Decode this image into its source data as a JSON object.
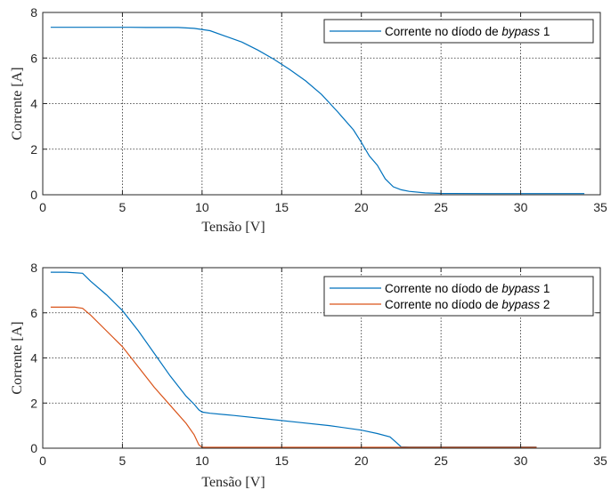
{
  "chart_data": [
    {
      "type": "line",
      "title": "",
      "xlabel": "Tensão [V]",
      "ylabel": "Corrente [A]",
      "xlim": [
        0,
        35
      ],
      "ylim": [
        0,
        8
      ],
      "xticks": [
        0,
        5,
        10,
        15,
        20,
        25,
        30,
        35
      ],
      "yticks": [
        0,
        2,
        4,
        6,
        8
      ],
      "grid": true,
      "legend_position": "top-right",
      "series": [
        {
          "name": "Corrente no díodo de bypass 1",
          "legend_prefix": "Corrente no díodo de ",
          "legend_italic": "bypass",
          "legend_suffix": " 1",
          "color": "#0072BD",
          "x": [
            0.5,
            2,
            4,
            5.5,
            6.5,
            7.5,
            8.5,
            9.5,
            10.5,
            11.5,
            12.5,
            13.5,
            14.5,
            15.5,
            16.5,
            17.5,
            18.5,
            19.5,
            20,
            20.5,
            21,
            21.5,
            22,
            22.5,
            23,
            24,
            25,
            28,
            30,
            34
          ],
          "y": [
            7.35,
            7.35,
            7.35,
            7.35,
            7.34,
            7.34,
            7.34,
            7.3,
            7.2,
            6.95,
            6.7,
            6.35,
            5.95,
            5.5,
            5.0,
            4.4,
            3.65,
            2.85,
            2.3,
            1.7,
            1.3,
            0.7,
            0.35,
            0.22,
            0.15,
            0.08,
            0.06,
            0.05,
            0.05,
            0.05
          ]
        }
      ]
    },
    {
      "type": "line",
      "title": "",
      "xlabel": "Tensão [V]",
      "ylabel": "Corrente [A]",
      "xlim": [
        0,
        35
      ],
      "ylim": [
        0,
        8
      ],
      "xticks": [
        0,
        5,
        10,
        15,
        20,
        25,
        30,
        35
      ],
      "yticks": [
        0,
        2,
        4,
        6,
        8
      ],
      "grid": true,
      "legend_position": "top-right",
      "series": [
        {
          "name": "Corrente no díodo de bypass 1",
          "legend_prefix": "Corrente no díodo de ",
          "legend_italic": "bypass",
          "legend_suffix": " 1",
          "color": "#0072BD",
          "x": [
            0.5,
            1.5,
            2.5,
            3,
            4,
            5,
            6,
            7,
            8,
            9,
            9.5,
            9.8,
            10,
            10.5,
            12,
            14,
            16,
            18,
            20,
            21,
            21.8,
            22.2,
            22.5,
            23,
            25,
            30,
            31
          ],
          "y": [
            7.8,
            7.8,
            7.75,
            7.4,
            6.8,
            6.1,
            5.2,
            4.2,
            3.2,
            2.3,
            1.95,
            1.7,
            1.6,
            1.55,
            1.45,
            1.3,
            1.15,
            1.0,
            0.8,
            0.65,
            0.5,
            0.25,
            0.06,
            0.05,
            0.05,
            0.05,
            0.05
          ]
        },
        {
          "name": "Corrente no díodo de bypass 2",
          "legend_prefix": "Corrente no díodo de ",
          "legend_italic": "bypass",
          "legend_suffix": " 2",
          "color": "#D95319",
          "x": [
            0.5,
            2,
            2.5,
            3,
            4,
            5,
            6,
            7,
            8,
            9,
            9.5,
            9.8,
            10,
            10.5,
            15,
            20,
            25,
            31
          ],
          "y": [
            6.25,
            6.25,
            6.2,
            5.9,
            5.2,
            4.5,
            3.6,
            2.7,
            1.9,
            1.1,
            0.6,
            0.15,
            0.04,
            0.04,
            0.04,
            0.04,
            0.04,
            0.04
          ]
        }
      ]
    }
  ]
}
